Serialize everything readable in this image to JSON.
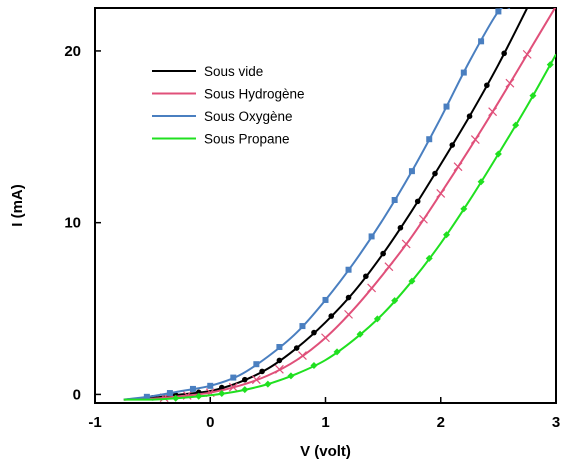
{
  "chart_data": {
    "type": "line",
    "xlabel": "V (volt)",
    "ylabel": "I (mA)",
    "xlim": [
      -1,
      3
    ],
    "ylim": [
      -0.5,
      22.5
    ],
    "xticks": [
      -1,
      0,
      1,
      2,
      3
    ],
    "yticks": [
      0,
      10,
      20
    ],
    "grid": false,
    "legend_position": "top-left",
    "series": [
      {
        "name": "Sous vide",
        "color": "#000000",
        "marker": "circle",
        "x": [
          -0.75,
          -0.5,
          -0.25,
          0,
          0.25,
          0.5,
          0.75,
          1.0,
          1.25,
          1.5,
          1.75,
          2.0,
          2.25,
          2.5,
          2.75
        ],
        "y": [
          -0.3,
          -0.2,
          0.0,
          0.2,
          0.7,
          1.5,
          2.7,
          4.2,
          6.0,
          8.2,
          10.7,
          13.4,
          16.2,
          19.2,
          22.5
        ],
        "marker_x": [
          -0.5,
          -0.3,
          -0.1,
          0.1,
          0.3,
          0.45,
          0.6,
          0.75,
          0.9,
          1.05,
          1.2,
          1.35,
          1.5,
          1.65,
          1.8,
          1.95,
          2.1,
          2.25,
          2.4,
          2.55
        ]
      },
      {
        "name": "Sous Hydrogène",
        "color": "#e0507a",
        "marker": "x",
        "x": [
          -0.75,
          -0.5,
          -0.25,
          0,
          0.25,
          0.5,
          0.75,
          1.0,
          1.25,
          1.5,
          1.75,
          2.0,
          2.25,
          2.5,
          2.75,
          3.0
        ],
        "y": [
          -0.3,
          -0.25,
          -0.1,
          0.1,
          0.5,
          1.1,
          2.0,
          3.3,
          5.0,
          7.0,
          9.2,
          11.7,
          14.3,
          17.0,
          19.8,
          22.6
        ],
        "marker_x": [
          -0.4,
          -0.2,
          0.0,
          0.2,
          0.4,
          0.6,
          0.8,
          1.0,
          1.2,
          1.4,
          1.55,
          1.7,
          1.85,
          2.0,
          2.15,
          2.3,
          2.45,
          2.6,
          2.75
        ]
      },
      {
        "name": "Sous Oxygène",
        "color": "#4a7fc0",
        "marker": "square",
        "x": [
          -0.75,
          -0.5,
          -0.25,
          0,
          0.25,
          0.5,
          0.75,
          1.0,
          1.25,
          1.5,
          1.75,
          2.0,
          2.25,
          2.5,
          2.6
        ],
        "y": [
          -0.3,
          -0.1,
          0.2,
          0.5,
          1.1,
          2.2,
          3.6,
          5.5,
          7.7,
          10.2,
          13.0,
          16.1,
          19.4,
          22.3,
          22.5
        ],
        "marker_x": [
          -0.55,
          -0.35,
          -0.15,
          0.0,
          0.2,
          0.4,
          0.6,
          0.8,
          1.0,
          1.2,
          1.4,
          1.6,
          1.75,
          1.9,
          2.05,
          2.2,
          2.35,
          2.5
        ]
      },
      {
        "name": "Sous Propane",
        "color": "#20e020",
        "marker": "diamond",
        "x": [
          -0.75,
          -0.5,
          -0.25,
          0,
          0.25,
          0.5,
          0.75,
          1.0,
          1.25,
          1.5,
          1.75,
          2.0,
          2.25,
          2.5,
          2.75,
          3.0
        ],
        "y": [
          -0.3,
          -0.3,
          -0.2,
          -0.05,
          0.2,
          0.6,
          1.2,
          2.0,
          3.2,
          4.7,
          6.6,
          8.8,
          11.3,
          14.0,
          16.8,
          19.8
        ],
        "marker_x": [
          -0.3,
          -0.1,
          0.1,
          0.3,
          0.5,
          0.7,
          0.9,
          1.1,
          1.3,
          1.45,
          1.6,
          1.75,
          1.9,
          2.05,
          2.2,
          2.35,
          2.5,
          2.65,
          2.8,
          2.95
        ]
      }
    ]
  }
}
